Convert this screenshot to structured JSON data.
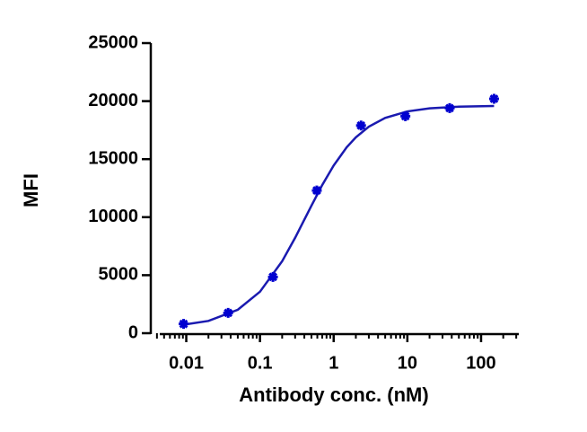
{
  "chart_data": {
    "type": "scatter",
    "x_label": "Antibody conc. (nM)",
    "y_label": "MFI",
    "x_scale": "log",
    "minor_ticks": true,
    "x": [
      0.0092,
      0.037,
      0.15,
      0.59,
      2.35,
      9.4,
      37.5,
      150
    ],
    "values": [
      800,
      1750,
      4850,
      12300,
      17900,
      18700,
      19400,
      20200
    ],
    "color": "#0000d0",
    "fit": {
      "x": [
        0.009,
        0.02,
        0.05,
        0.1,
        0.2,
        0.3,
        0.5,
        0.7,
        1,
        1.5,
        2,
        3,
        5,
        10,
        20,
        50,
        150
      ],
      "values": [
        727,
        1058,
        2022,
        3576,
        6207,
        8223,
        11000,
        12775,
        14452,
        16016,
        16881,
        17801,
        18555,
        19114,
        19378,
        19522,
        19578
      ],
      "color": "#1a1ab0"
    },
    "xlim": [
      0.0033,
      325
    ],
    "xticks": [
      0.01,
      0.1,
      1,
      10,
      100
    ],
    "ylim": [
      0,
      25000
    ],
    "yticks": [
      0,
      5000,
      10000,
      15000,
      20000,
      25000
    ]
  }
}
